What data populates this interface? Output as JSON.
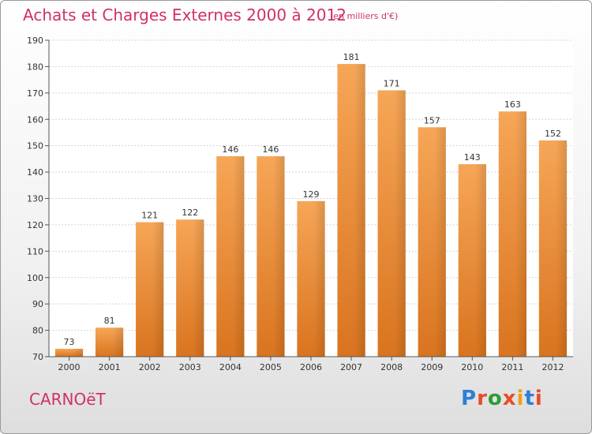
{
  "header": {
    "title": "Achats et Charges Externes 2000 à 2012",
    "subtitle": "(en milliers d'€)"
  },
  "footer": {
    "place": "CARNOëT",
    "brand": "Proxiti",
    "brand_colors": [
      "#2f7fd6",
      "#e84b2a",
      "#2e9b3a",
      "#e84b2a",
      "#f0a01c",
      "#2f7fd6",
      "#e84b2a"
    ]
  },
  "chart_data": {
    "type": "bar",
    "categories": [
      "2000",
      "2001",
      "2002",
      "2003",
      "2004",
      "2005",
      "2006",
      "2007",
      "2008",
      "2009",
      "2010",
      "2011",
      "2012"
    ],
    "values": [
      73,
      81,
      121,
      122,
      146,
      146,
      129,
      181,
      171,
      157,
      143,
      163,
      152
    ],
    "ylim": [
      70,
      190
    ],
    "yticks": [
      70,
      80,
      90,
      100,
      110,
      120,
      130,
      140,
      150,
      160,
      170,
      180,
      190
    ],
    "grid": true,
    "bar_color_top": "#f6a657",
    "bar_color_bottom": "#d9741f"
  }
}
